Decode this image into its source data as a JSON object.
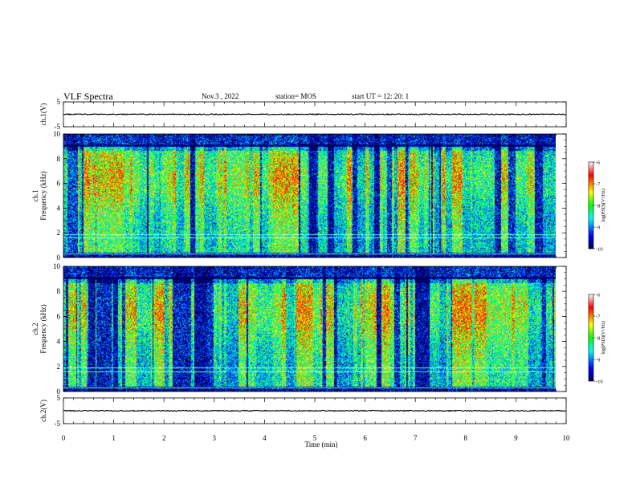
{
  "header": {
    "title": "VLF Spectra",
    "date": "Nov.3  , 2022",
    "station": "station= MOS",
    "start_ut": "start  UT  =    12: 20: 1"
  },
  "chart_data": [
    {
      "type": "line",
      "panel": "ch1-waveform",
      "ylabel": "ch.1(V)",
      "ylim": [
        -5,
        5
      ],
      "yticks": [
        5,
        -5
      ],
      "xlim": [
        0,
        10
      ],
      "series": [
        {
          "baseline": 0,
          "shows": "near-flat trace"
        }
      ]
    },
    {
      "type": "heatmap",
      "panel": "ch1-spectrogram",
      "ylabel": "ch.1\nFrequency (kHz)",
      "ylim": [
        0,
        10
      ],
      "yticks": [
        "0",
        "2",
        "4",
        "6",
        "8",
        "10"
      ],
      "xlim": [
        0,
        9.8
      ],
      "colorbar": {
        "label": "log(PSD)(V²/Hz)",
        "range": [
          -10,
          -6
        ],
        "ticks": [
          "-6",
          "-7",
          "-8",
          "-9",
          "-10"
        ],
        "colors": [
          "#000080",
          "#0000ff",
          "#00ffff",
          "#00ff00",
          "#ffff00",
          "#ff0000",
          "#ffffff"
        ]
      }
    },
    {
      "type": "heatmap",
      "panel": "ch2-spectrogram",
      "ylabel": "ch.2\nFrequency (kHz)",
      "ylim": [
        0,
        10
      ],
      "yticks": [
        "0",
        "2",
        "4",
        "6",
        "8",
        "10"
      ],
      "xlim": [
        0,
        9.8
      ],
      "colorbar": {
        "label": "log(PSD)(V²/Hz)",
        "range": [
          -10,
          -6
        ],
        "ticks": [
          "-6",
          "-7",
          "-8",
          "-9",
          "-10"
        ],
        "colors": [
          "#000080",
          "#0000ff",
          "#00ffff",
          "#00ff00",
          "#ffff00",
          "#ff0000",
          "#ffffff"
        ]
      }
    },
    {
      "type": "line",
      "panel": "ch2-waveform",
      "ylabel": "ch.2(V)",
      "ylim": [
        -5,
        5
      ],
      "yticks": [
        5,
        -5
      ],
      "xlim": [
        0,
        10
      ],
      "series": [
        {
          "baseline": 0,
          "shows": "near-flat trace"
        }
      ]
    }
  ],
  "x_axis": {
    "label": "Time  (min)",
    "ticks": [
      "0",
      "1",
      "2",
      "3",
      "4",
      "5",
      "6",
      "7",
      "8",
      "9",
      "10"
    ],
    "range": [
      0,
      10
    ]
  }
}
